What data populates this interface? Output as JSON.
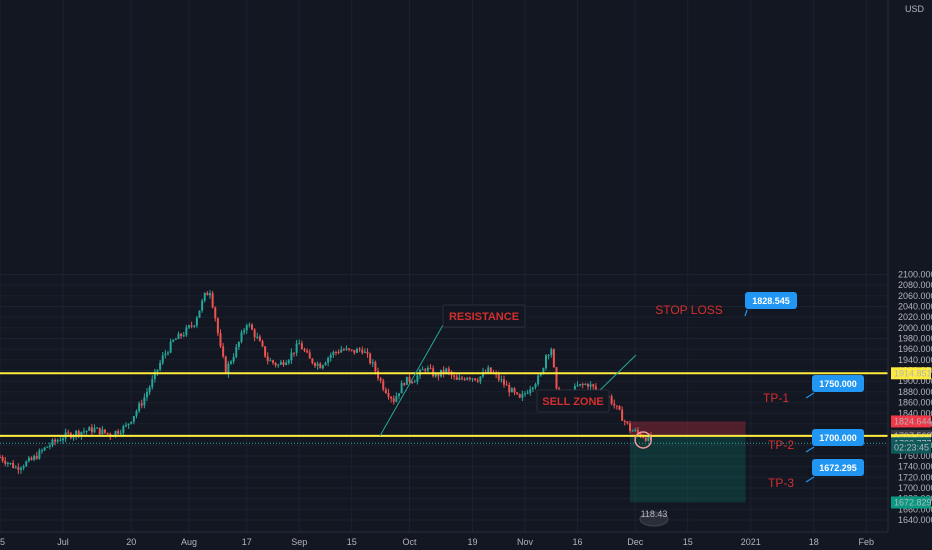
{
  "chart_data": {
    "type": "candlestick",
    "currency": "USD",
    "ylim": [
      1640,
      2120
    ],
    "y_ticks": [
      1640,
      1660,
      1680,
      1700,
      1720,
      1740,
      1760,
      1780,
      1800,
      1820,
      1840,
      1860,
      1880,
      1900,
      1920,
      1940,
      1960,
      1980,
      2000,
      2020,
      2040,
      2060,
      2080,
      2100
    ],
    "y_tick_labels": [
      "1640.000",
      "1660.000",
      "1680.000",
      "1700.000",
      "1720.000",
      "1740.000",
      "1760.000",
      "1780.000",
      "1800.000",
      "1820.000",
      "1840.000",
      "1860.000",
      "1880.000",
      "1900.000",
      "1920.000",
      "1940.000",
      "1960.000",
      "1980.000",
      "2000.000",
      "2020.000",
      "2040.000",
      "2060.000",
      "2080.000",
      "2100.000"
    ],
    "x_ticks": [
      {
        "label": "15",
        "x": 0
      },
      {
        "label": "Jul",
        "x": 12
      },
      {
        "label": "20",
        "x": 25
      },
      {
        "label": "Aug",
        "x": 36
      },
      {
        "label": "17",
        "x": 47
      },
      {
        "label": "Sep",
        "x": 57
      },
      {
        "label": "15",
        "x": 67
      },
      {
        "label": "Oct",
        "x": 78
      },
      {
        "label": "19",
        "x": 90
      },
      {
        "label": "Nov",
        "x": 100
      },
      {
        "label": "16",
        "x": 110
      },
      {
        "label": "Dec",
        "x": 121
      },
      {
        "label": "15",
        "x": 131
      },
      {
        "label": "2021",
        "x": 143
      },
      {
        "label": "18",
        "x": 155
      },
      {
        "label": "Feb",
        "x": 165
      }
    ],
    "price_path": [
      [
        0,
        1758
      ],
      [
        3,
        1738
      ],
      [
        6,
        1752
      ],
      [
        9,
        1778
      ],
      [
        12,
        1796
      ],
      [
        15,
        1805
      ],
      [
        18,
        1810
      ],
      [
        21,
        1800
      ],
      [
        24,
        1815
      ],
      [
        27,
        1860
      ],
      [
        29,
        1900
      ],
      [
        31,
        1945
      ],
      [
        33,
        1975
      ],
      [
        35,
        1990
      ],
      [
        37,
        2010
      ],
      [
        39,
        2060
      ],
      [
        40,
        2070
      ],
      [
        41,
        2020
      ],
      [
        42,
        1960
      ],
      [
        43,
        1920
      ],
      [
        45,
        1960
      ],
      [
        47,
        2010
      ],
      [
        49,
        1980
      ],
      [
        51,
        1940
      ],
      [
        53,
        1930
      ],
      [
        55,
        1945
      ],
      [
        57,
        1970
      ],
      [
        59,
        1940
      ],
      [
        61,
        1930
      ],
      [
        63,
        1950
      ],
      [
        65,
        1960
      ],
      [
        67,
        1955
      ],
      [
        69,
        1960
      ],
      [
        71,
        1930
      ],
      [
        73,
        1890
      ],
      [
        75,
        1865
      ],
      [
        77,
        1900
      ],
      [
        79,
        1905
      ],
      [
        81,
        1925
      ],
      [
        83,
        1910
      ],
      [
        85,
        1920
      ],
      [
        87,
        1900
      ],
      [
        89,
        1910
      ],
      [
        91,
        1905
      ],
      [
        93,
        1920
      ],
      [
        95,
        1905
      ],
      [
        97,
        1885
      ],
      [
        99,
        1865
      ],
      [
        101,
        1890
      ],
      [
        103,
        1910
      ],
      [
        104,
        1950
      ],
      [
        105,
        1962
      ],
      [
        106,
        1880
      ],
      [
        108,
        1870
      ],
      [
        110,
        1890
      ],
      [
        112,
        1895
      ],
      [
        114,
        1880
      ],
      [
        116,
        1870
      ],
      [
        118,
        1840
      ],
      [
        120,
        1810
      ],
      [
        122,
        1800
      ],
      [
        124,
        1790
      ]
    ],
    "bands": {
      "stop_zone": {
        "x_start": 120,
        "x_end": 142,
        "y_from": 1797.568,
        "y_to": 1824.644
      },
      "target_zone": {
        "x_start": 120,
        "x_end": 142,
        "y_from": 1672.829,
        "y_to": 1797.568
      }
    },
    "horizontal_lines": [
      {
        "y": 1914.851,
        "color": "#ffeb3b",
        "label": "1914.851"
      },
      {
        "y": 1797.568,
        "color": "#ffeb3b",
        "label": "1797.568"
      }
    ],
    "price_labels": [
      {
        "y": 1914.851,
        "text": "1914.851",
        "bg": "#ffeb3b",
        "fg": "#131722"
      },
      {
        "y": 1824.644,
        "text": "1824.644",
        "bg": "#f23645",
        "fg": "#ffffff"
      },
      {
        "y": 1797.568,
        "text": "1797.568",
        "bg": "#363a45",
        "fg": "#ffffff"
      },
      {
        "y": 1789.5,
        "text": "1796.538",
        "bg": "#ffeb3b",
        "fg": "#131722"
      },
      {
        "y": 1783.777,
        "text": "1783.777",
        "bg": "#0e5a5a",
        "fg": "#ffffff"
      },
      {
        "y": 1775.5,
        "text": "02:23:45",
        "bg": "#0e5a5a",
        "fg": "#ffffff"
      },
      {
        "y": 1672.829,
        "text": "1672.829",
        "bg": "#089981",
        "fg": "#ffffff"
      }
    ],
    "annotations": {
      "resistance": "RESISTANCE",
      "sell_zone": "SELL ZONE",
      "stop_loss": "STOP LOSS",
      "tp1": "TP-1",
      "tp2": "TP-2",
      "tp3": "TP-3"
    },
    "callouts": [
      {
        "text": "1828.545",
        "y": 1828.545
      },
      {
        "text": "1750.000",
        "y": 1750.0
      },
      {
        "text": "1700.000",
        "y": 1700.0
      },
      {
        "text": "1672.295",
        "y": 1672.295
      }
    ],
    "footer_badge": "118.43"
  },
  "colors": {
    "background": "#131722",
    "up": "#26a69a",
    "down": "#ef5350",
    "level": "#ffeb3b",
    "stop_fill": "rgba(242,54,69,0.28)",
    "target_fill": "rgba(8,153,129,0.22)",
    "ann_red": "#d32f2f",
    "callout_bg": "#2196f3"
  }
}
